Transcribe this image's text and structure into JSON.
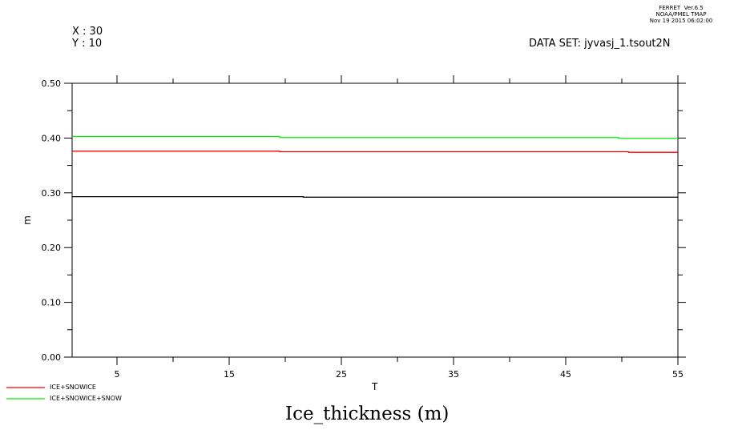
{
  "header": {
    "ferret_lines": [
      "FERRET  Ver.6.5",
      "NOAA/PMEL TMAP",
      "Nov 19 2015 06:02:00"
    ],
    "x_label": "X : 30",
    "y_label": "Y : 10",
    "dataset": "DATA SET: jyvasj_1.tsout2N"
  },
  "chart_data": {
    "type": "line",
    "title": "Ice_thickness (m)",
    "xlabel": "T",
    "ylabel": "m",
    "xlim": [
      1,
      55
    ],
    "ylim": [
      0,
      0.5
    ],
    "x_ticks": [
      5,
      15,
      25,
      35,
      45,
      55
    ],
    "x_tick_labels": [
      "5",
      "15",
      "25",
      "35",
      "45",
      "55"
    ],
    "y_ticks": [
      0,
      0.1,
      0.2,
      0.3,
      0.4,
      0.5
    ],
    "y_tick_labels": [
      "0.00",
      "0.10",
      "0.20",
      "0.30",
      "0.40",
      "0.50"
    ],
    "grid": false,
    "legend_placement": "bottom-left",
    "series": [
      {
        "color": "#000000",
        "segments": [
          [
            1,
            21.6,
            0.293
          ],
          [
            21.6,
            55,
            0.292
          ]
        ]
      },
      {
        "name": "ICE+SNOWICE",
        "color": "#ff0000",
        "segments": [
          [
            1,
            19.5,
            0.376
          ],
          [
            19.5,
            50.6,
            0.375
          ],
          [
            50.6,
            55,
            0.374
          ]
        ]
      },
      {
        "name": "ICE+SNOWICE+SNOW",
        "color": "#00ee00",
        "segments": [
          [
            1,
            19.5,
            0.403
          ],
          [
            19.5,
            49.7,
            0.401
          ],
          [
            49.7,
            55,
            0.3995
          ]
        ]
      }
    ]
  }
}
